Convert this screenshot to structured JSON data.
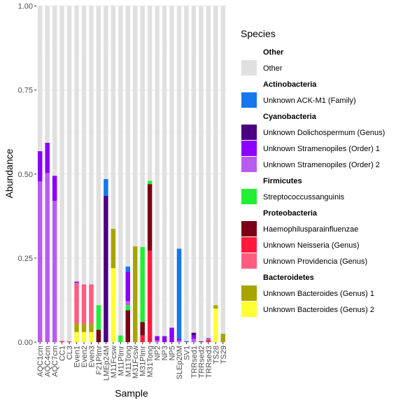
{
  "chart_data": {
    "type": "bar",
    "stacked": true,
    "xlabel": "Sample",
    "ylabel": "Abundance",
    "ylim": [
      0,
      1
    ],
    "yticks": [
      "0.00",
      "0.25",
      "0.50",
      "0.75",
      "1.00"
    ],
    "grid": true,
    "legend_position": "right",
    "legend_title": "Species",
    "categories": [
      "AQC1cm",
      "AQC4cm",
      "AQC7cm",
      "CC1",
      "CL3",
      "Even1",
      "Even2",
      "Even3",
      "F21Plmr",
      "LMEp24M",
      "M11Fcsw",
      "M11Plmr",
      "M11Tong",
      "M31Fcsw",
      "M31Plmr",
      "M31Tong",
      "NP2",
      "NP3",
      "NP5",
      "SLEp20M",
      "SV1",
      "TRRsed1",
      "TRRsed2",
      "TRRsed3",
      "TS28",
      "TS29"
    ],
    "legend_groups": [
      {
        "name": "Other",
        "items": [
          {
            "label": "Other",
            "color": "#e0e0e0"
          }
        ]
      },
      {
        "name": "Actinobacteria",
        "items": [
          {
            "label": "Unknown ACK-M1 (Family)",
            "color": "#1478ec"
          }
        ]
      },
      {
        "name": "Cyanobacteria",
        "items": [
          {
            "label": "Unknown Dolichospermum (Genus)",
            "color": "#4b0082"
          },
          {
            "label": "Unknown Stramenopiles (Order) 1",
            "color": "#8b00ff"
          },
          {
            "label": "Unknown Stramenopiles (Order) 2",
            "color": "#b85cf0"
          }
        ]
      },
      {
        "name": "Firmicutes",
        "items": [
          {
            "label": "Streptococcussanguinis",
            "color": "#22ee33"
          }
        ]
      },
      {
        "name": "Proteobacteria",
        "items": [
          {
            "label": "Haemophilusparainfluenzae",
            "color": "#7b0016"
          },
          {
            "label": "Unknown Neisseria (Genus)",
            "color": "#ff1a3c"
          },
          {
            "label": "Unknown Providencia (Genus)",
            "color": "#ff5c80"
          }
        ]
      },
      {
        "name": "Bacteroidetes",
        "items": [
          {
            "label": "Unknown Bacteroides (Genus) 1",
            "color": "#a8a400"
          },
          {
            "label": "Unknown Bacteroides (Genus) 2",
            "color": "#ffff33"
          }
        ]
      }
    ],
    "series_stack_order": [
      "Unknown Bacteroides (Genus) 2",
      "Unknown Bacteroides (Genus) 1",
      "Unknown Providencia (Genus)",
      "Unknown Neisseria (Genus)",
      "Haemophilusparainfluenzae",
      "Streptococcussanguinis",
      "Unknown Stramenopiles (Order) 2",
      "Unknown Stramenopiles (Order) 1",
      "Unknown Dolichospermum (Genus)",
      "Unknown ACK-M1 (Family)",
      "Other"
    ],
    "series": [
      {
        "name": "Unknown Bacteroides (Genus) 2",
        "values": [
          0,
          0,
          0,
          0,
          0,
          0.03,
          0.03,
          0.03,
          0,
          0,
          0.22,
          0,
          0,
          0,
          0,
          0,
          0,
          0,
          0,
          0,
          0,
          0,
          0,
          0,
          0.1,
          0
        ]
      },
      {
        "name": "Unknown Bacteroides (Genus) 1",
        "values": [
          0,
          0,
          0,
          0,
          0,
          0.025,
          0.025,
          0.025,
          0,
          0,
          0.117,
          0,
          0,
          0.285,
          0,
          0,
          0,
          0,
          0,
          0,
          0,
          0,
          0,
          0,
          0.01,
          0.025
        ]
      },
      {
        "name": "Unknown Providencia (Genus)",
        "values": [
          0,
          0,
          0,
          0,
          0,
          0.118,
          0.117,
          0.117,
          0,
          0,
          0,
          0,
          0,
          0,
          0,
          0,
          0,
          0,
          0,
          0,
          0,
          0,
          0,
          0,
          0,
          0
        ]
      },
      {
        "name": "Unknown Neisseria (Genus)",
        "values": [
          0,
          0,
          0,
          0.003,
          0.002,
          0,
          0,
          0,
          0,
          0,
          0,
          0,
          0,
          0,
          0.02,
          0.272,
          0,
          0,
          0,
          0,
          0,
          0,
          0,
          0.006,
          0,
          0
        ]
      },
      {
        "name": "Haemophilusparainfluenzae",
        "values": [
          0,
          0,
          0,
          0,
          0,
          0,
          0,
          0,
          0.037,
          0,
          0,
          0,
          0.095,
          0,
          0.04,
          0.198,
          0,
          0,
          0,
          0,
          0,
          0,
          0,
          0,
          0,
          0
        ]
      },
      {
        "name": "Streptococcussanguinis",
        "values": [
          0,
          0,
          0,
          0,
          0,
          0,
          0,
          0,
          0.073,
          0,
          0,
          0.02,
          0.015,
          0,
          0.223,
          0.01,
          0,
          0,
          0,
          0,
          0,
          0,
          0,
          0,
          0,
          0
        ]
      },
      {
        "name": "Unknown Stramenopiles (Order) 2",
        "values": [
          0.478,
          0.503,
          0.42,
          0,
          0,
          0.004,
          0,
          0,
          0,
          0,
          0,
          0,
          0.012,
          0,
          0,
          0,
          0.005,
          0,
          0,
          0.005,
          0,
          0.01,
          0,
          0.007,
          0,
          0
        ]
      },
      {
        "name": "Unknown Stramenopiles (Order) 1",
        "values": [
          0.09,
          0.09,
          0.075,
          0,
          0,
          0.003,
          0,
          0,
          0,
          0,
          0,
          0,
          0.088,
          0,
          0,
          0,
          0.013,
          0.018,
          0.043,
          0.005,
          0,
          0.01,
          0,
          0,
          0,
          0
        ]
      },
      {
        "name": "Unknown Dolichospermum (Genus)",
        "values": [
          0,
          0,
          0,
          0,
          0,
          0,
          0,
          0,
          0,
          0.435,
          0,
          0,
          0,
          0,
          0,
          0,
          0,
          0,
          0,
          0,
          0,
          0.008,
          0.002,
          0,
          0,
          0
        ]
      },
      {
        "name": "Unknown ACK-M1 (Family)",
        "values": [
          0,
          0,
          0,
          0,
          0,
          0,
          0,
          0,
          0,
          0.05,
          0,
          0,
          0.015,
          0,
          0,
          0,
          0,
          0,
          0,
          0.268,
          0.003,
          0,
          0,
          0,
          0,
          0
        ]
      },
      {
        "name": "Other",
        "values": [
          0.432,
          0.407,
          0.505,
          0.997,
          0.998,
          0.82,
          0.828,
          0.828,
          0.89,
          0.515,
          0.663,
          0.98,
          0.775,
          0.715,
          0.717,
          0.52,
          0.982,
          0.982,
          0.957,
          0.722,
          0.997,
          0.972,
          0.998,
          0.987,
          0.89,
          0.975
        ]
      }
    ]
  }
}
